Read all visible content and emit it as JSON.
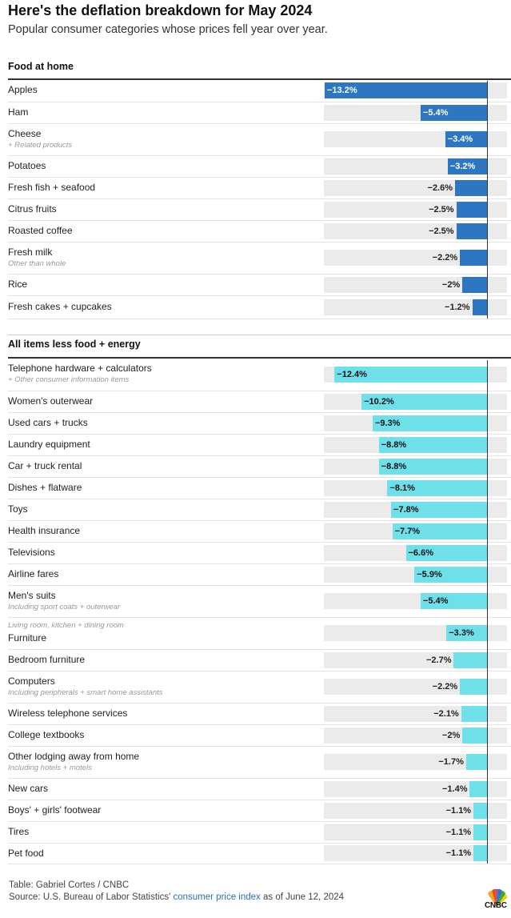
{
  "header": {
    "title": "Here's the deflation breakdown for May 2024",
    "subtitle": "Popular consumer categories whose prices fell year over year."
  },
  "colors": {
    "food": "#2d77c2",
    "core": "#6ee0ea",
    "track": "#ebebeb",
    "link": "#2d6fb7"
  },
  "chart_data": {
    "type": "bar",
    "orientation": "horizontal",
    "unit": "%",
    "xlim": [
      -13.2,
      0
    ],
    "groups": [
      {
        "name": "Food at home",
        "series_key": "food",
        "items": [
          {
            "label": "Apples",
            "value": -13.2,
            "display": "−13.2%"
          },
          {
            "label": "Ham",
            "value": -5.4,
            "display": "−5.4%"
          },
          {
            "label": "Cheese",
            "note": "+ Related products",
            "value": -3.4,
            "display": "−3.4%"
          },
          {
            "label": "Potatoes",
            "value": -3.2,
            "display": "−3.2%"
          },
          {
            "label": "Fresh fish + seafood",
            "value": -2.6,
            "display": "−2.6%"
          },
          {
            "label": "Citrus fruits",
            "value": -2.5,
            "display": "−2.5%"
          },
          {
            "label": "Roasted coffee",
            "value": -2.5,
            "display": "−2.5%"
          },
          {
            "label": "Fresh milk",
            "note": "Other than whole",
            "value": -2.2,
            "display": "−2.2%"
          },
          {
            "label": "Rice",
            "value": -2,
            "display": "−2%"
          },
          {
            "label": "Fresh cakes + cupcakes",
            "value": -1.2,
            "display": "−1.2%"
          }
        ]
      },
      {
        "name": "All items less food + energy",
        "series_key": "core",
        "items": [
          {
            "label": "Telephone hardware + calculators",
            "note": "+ Other consumer information items",
            "value": -12.4,
            "display": "−12.4%"
          },
          {
            "label": "Women's outerwear",
            "value": -10.2,
            "display": "−10.2%"
          },
          {
            "label": "Used cars + trucks",
            "value": -9.3,
            "display": "−9.3%"
          },
          {
            "label": "Laundry equipment",
            "value": -8.8,
            "display": "−8.8%"
          },
          {
            "label": "Car + truck rental",
            "value": -8.8,
            "display": "−8.8%"
          },
          {
            "label": "Dishes + flatware",
            "value": -8.1,
            "display": "−8.1%"
          },
          {
            "label": "Toys",
            "value": -7.8,
            "display": "−7.8%"
          },
          {
            "label": "Health insurance",
            "value": -7.7,
            "display": "−7.7%"
          },
          {
            "label": "Televisions",
            "value": -6.6,
            "display": "−6.6%"
          },
          {
            "label": "Airline fares",
            "value": -5.9,
            "display": "−5.9%"
          },
          {
            "label": "Men's suits",
            "note": "Including sport coats + outerwear",
            "value": -5.4,
            "display": "−5.4%"
          },
          {
            "label": "Furniture",
            "note_above": "Living room, kitchen + dining room",
            "value": -3.3,
            "display": "−3.3%"
          },
          {
            "label": "Bedroom furniture",
            "value": -2.7,
            "display": "−2.7%"
          },
          {
            "label": "Computers",
            "note": "Including peripherals + smart home assistants",
            "value": -2.2,
            "display": "−2.2%"
          },
          {
            "label": "Wireless telephone services",
            "value": -2.1,
            "display": "−2.1%"
          },
          {
            "label": "College textbooks",
            "value": -2,
            "display": "−2%"
          },
          {
            "label": "Other lodging away from home",
            "note": "Including hotels + motels",
            "value": -1.7,
            "display": "−1.7%"
          },
          {
            "label": "New cars",
            "value": -1.4,
            "display": "−1.4%"
          },
          {
            "label": "Boys' + girls' footwear",
            "value": -1.1,
            "display": "−1.1%"
          },
          {
            "label": "Tires",
            "value": -1.1,
            "display": "−1.1%"
          },
          {
            "label": "Pet food",
            "value": -1.1,
            "display": "−1.1%"
          }
        ]
      }
    ]
  },
  "footer": {
    "credit": "Table: Gabriel Cortes / CNBC",
    "source_prefix": "Source: U.S. Bureau of Labor Statistics'",
    "source_link": "consumer price index",
    "source_suffix": "as of June 12, 2024",
    "logo_text": "CNBC"
  }
}
